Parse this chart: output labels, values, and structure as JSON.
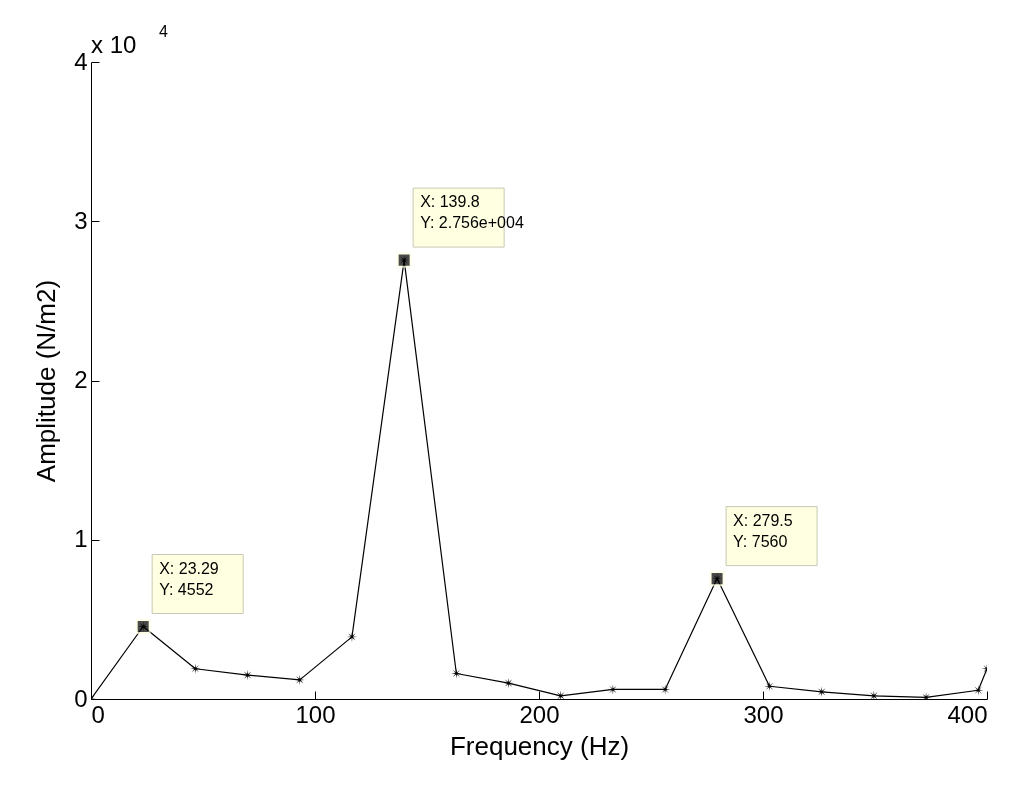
{
  "chart_data": {
    "type": "line",
    "xlabel": "Frequency (Hz)",
    "ylabel": "Amplitude (N/m2)",
    "x": [
      0,
      23.29,
      46.6,
      69.9,
      93.2,
      116.5,
      139.8,
      163.1,
      186.4,
      209.7,
      233,
      256.3,
      279.5,
      302.9,
      326.2,
      349.5,
      372.8,
      396.1,
      400
    ],
    "series": [
      {
        "color": "#000000",
        "values": [
          0,
          0.4552,
          0.19,
          0.15,
          0.12,
          0.39,
          2.756,
          0.16,
          0.1,
          0.02,
          0.06,
          0.06,
          0.756,
          0.08,
          0.045,
          0.02,
          0.01,
          0.055,
          0.19
        ]
      }
    ],
    "marker": "star",
    "xlim": [
      0,
      400
    ],
    "xticks": [
      0,
      100,
      200,
      300,
      400
    ],
    "ylim": [
      0,
      4
    ],
    "yticks": [
      0,
      1,
      2,
      3,
      4
    ],
    "annotations": [
      "x 10$^{4}$",
      {
        "text": "X: 23.29\nY: 4552",
        "x": 23.29,
        "y": 0.4552
      },
      {
        "text": "X: 139.8\nY: 2.756e+004",
        "x": 139.8,
        "y": 2.756
      },
      {
        "text": "X: 279.5\nY: 7560",
        "x": 279.5,
        "y": 0.756
      }
    ]
  }
}
